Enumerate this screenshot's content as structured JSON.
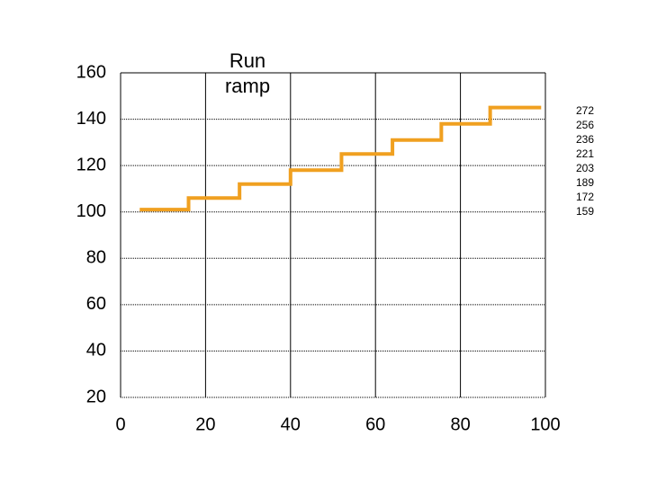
{
  "chart_data": {
    "type": "step",
    "title": "Run ramp",
    "x": [
      4.5,
      16,
      28,
      40,
      52,
      64,
      75.5,
      87,
      99
    ],
    "values": [
      101,
      106,
      112,
      118,
      125,
      131,
      138,
      145,
      145
    ],
    "color": "#f0a020",
    "xlim": [
      0,
      100
    ],
    "xticks": [
      0,
      20,
      40,
      60,
      80,
      100
    ],
    "ylim": [
      20,
      160
    ],
    "yticks": [
      20,
      40,
      60,
      80,
      100,
      120,
      140,
      160
    ],
    "grid": true,
    "annotations": [
      "272",
      "256",
      "236",
      "221",
      "203",
      "189",
      "172",
      "159"
    ]
  }
}
